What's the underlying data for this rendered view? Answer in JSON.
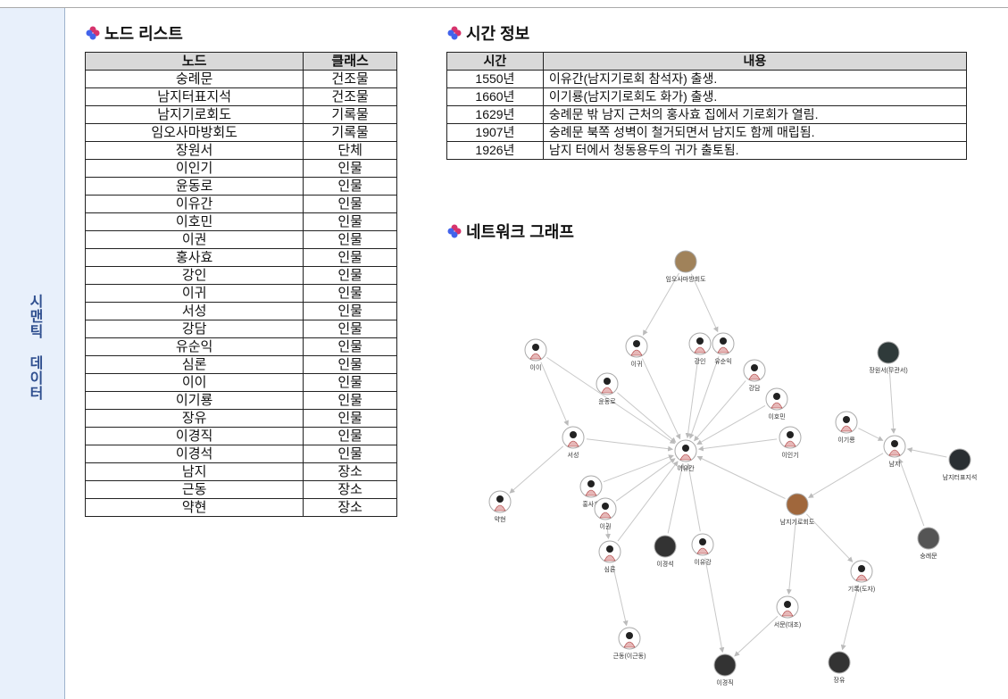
{
  "sidebar": {
    "label": "시맨틱 데이터"
  },
  "node_list": {
    "title": "노드 리스트",
    "columns": [
      "노드",
      "클래스"
    ],
    "rows": [
      [
        "숭례문",
        "건조물"
      ],
      [
        "남지터표지석",
        "건조물"
      ],
      [
        "남지기로회도",
        "기록물"
      ],
      [
        "임오사마방회도",
        "기록물"
      ],
      [
        "장원서",
        "단체"
      ],
      [
        "이인기",
        "인물"
      ],
      [
        "윤동로",
        "인물"
      ],
      [
        "이유간",
        "인물"
      ],
      [
        "이호민",
        "인물"
      ],
      [
        "이권",
        "인물"
      ],
      [
        "홍사효",
        "인물"
      ],
      [
        "강인",
        "인물"
      ],
      [
        "이귀",
        "인물"
      ],
      [
        "서성",
        "인물"
      ],
      [
        "강담",
        "인물"
      ],
      [
        "유순익",
        "인물"
      ],
      [
        "심론",
        "인물"
      ],
      [
        "이이",
        "인물"
      ],
      [
        "이기룡",
        "인물"
      ],
      [
        "장유",
        "인물"
      ],
      [
        "이경직",
        "인물"
      ],
      [
        "이경석",
        "인물"
      ],
      [
        "남지",
        "장소"
      ],
      [
        "근동",
        "장소"
      ],
      [
        "약현",
        "장소"
      ]
    ]
  },
  "time_info": {
    "title": "시간 정보",
    "columns": [
      "시간",
      "내용"
    ],
    "rows": [
      [
        "1550년",
        "이유간(남지기로회 참석자) 출생."
      ],
      [
        "1660년",
        "이기룡(남지기로회도 화가) 출생."
      ],
      [
        "1629년",
        "숭례문 밖 남지 근처의 홍사효 집에서 기로회가 열림."
      ],
      [
        "1907년",
        "숭례문 북쪽 성벽이 철거되면서 남지도 함께 매립됨."
      ],
      [
        "1926년",
        "남지 터에서 청동용두의 귀가 출토됨."
      ]
    ]
  },
  "network_graph": {
    "title": "네트워크 그래프",
    "nodes": [
      {
        "label": "임오사마방회도"
      },
      {
        "label": "이이"
      },
      {
        "label": "이귀"
      },
      {
        "label": "강인"
      },
      {
        "label": "유순익"
      },
      {
        "label": "윤동로"
      },
      {
        "label": "강담"
      },
      {
        "label": "이호민"
      },
      {
        "label": "이인기"
      },
      {
        "label": "이유간"
      },
      {
        "label": "서성"
      },
      {
        "label": "홍사효"
      },
      {
        "label": "이권"
      },
      {
        "label": "약현"
      },
      {
        "label": "심론"
      },
      {
        "label": "이경석"
      },
      {
        "label": "이유강"
      },
      {
        "label": "이기룡"
      },
      {
        "label": "장원서(무관서)"
      },
      {
        "label": "남지"
      },
      {
        "label": "남지터표지석"
      },
      {
        "label": "남지기로회도"
      },
      {
        "label": "숭례문"
      },
      {
        "label": "기록(도자)"
      },
      {
        "label": "서문(대조)"
      },
      {
        "label": "근동(이근동)"
      },
      {
        "label": "이경직"
      },
      {
        "label": "장유"
      }
    ]
  }
}
